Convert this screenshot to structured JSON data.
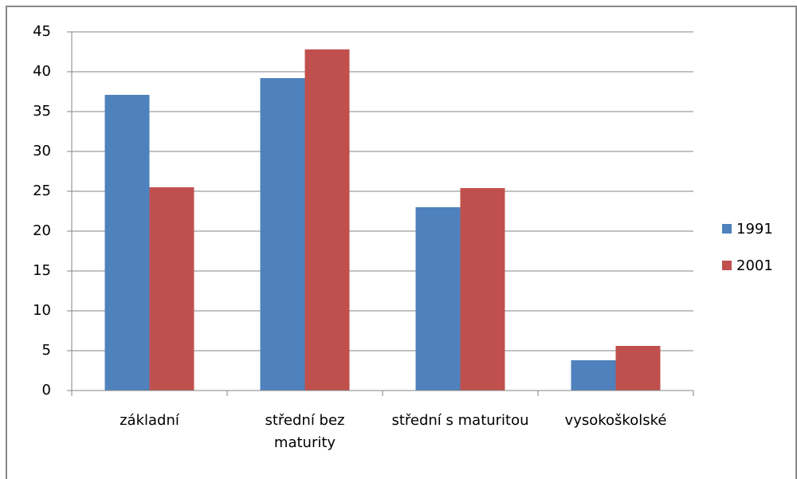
{
  "chart_data": {
    "type": "bar",
    "categories": [
      "základní",
      "střední bez maturity",
      "střední s maturitou",
      "vysokoškolské"
    ],
    "series": [
      {
        "name": "1991",
        "color": "#4f81bd",
        "values": [
          37.1,
          39.2,
          23.0,
          3.8
        ]
      },
      {
        "name": "2001",
        "color": "#c0504d",
        "values": [
          25.5,
          42.8,
          25.4,
          5.6
        ]
      }
    ],
    "ylim": [
      0,
      45
    ],
    "yticks": [
      0,
      5,
      10,
      15,
      20,
      25,
      30,
      35,
      40,
      45
    ],
    "grid": true,
    "legend": "right"
  }
}
